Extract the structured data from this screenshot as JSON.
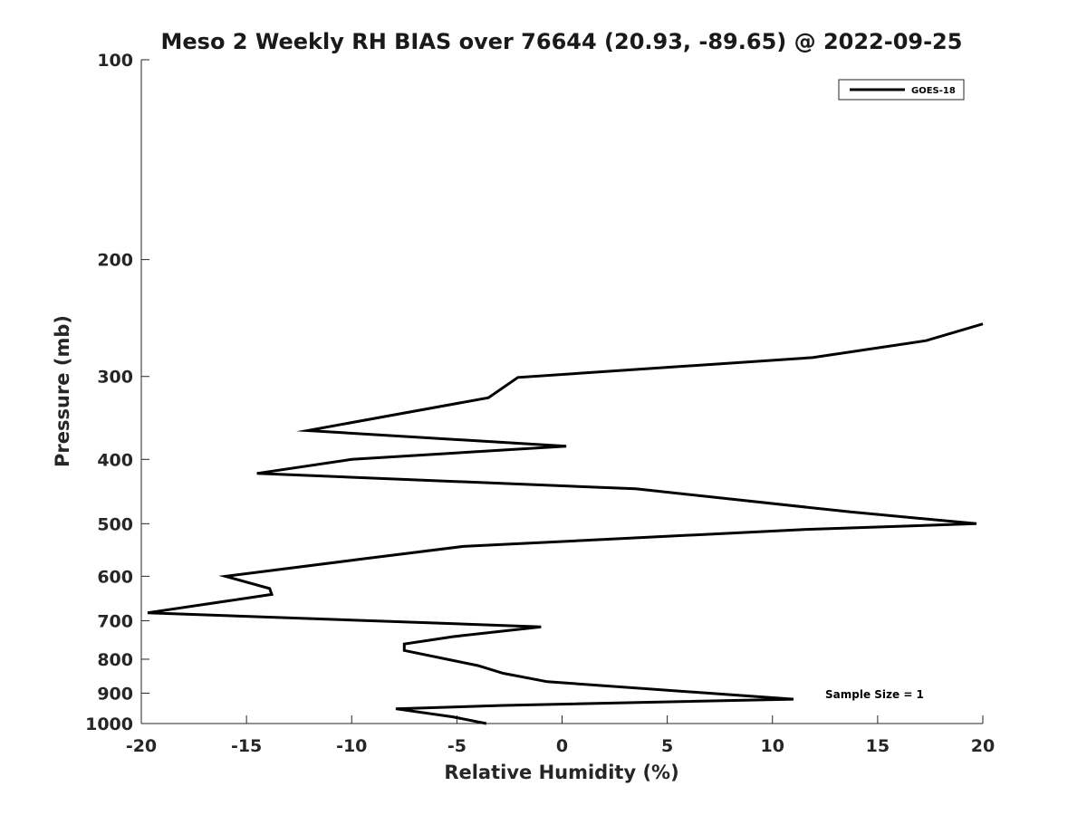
{
  "chart_data": {
    "type": "line",
    "title": "Meso 2 Weekly RH BIAS over 76644 (20.93, -89.65) @ 2022-09-25",
    "xlabel": "Relative Humidity (%)",
    "ylabel": "Pressure (mb)",
    "xlim": [
      -20,
      20
    ],
    "ylim": [
      100,
      1000
    ],
    "yscale": "log",
    "yreversed": true,
    "xticks": [
      -20,
      -15,
      -10,
      -5,
      0,
      5,
      10,
      15,
      20
    ],
    "yticks": [
      100,
      200,
      300,
      400,
      500,
      600,
      700,
      800,
      900,
      1000
    ],
    "grid": false,
    "legend_position": "top-right",
    "annotation": "Sample Size = 1",
    "series": [
      {
        "name": "GOES-18",
        "color": "#000000",
        "points": [
          [
            20.0,
            250
          ],
          [
            17.3,
            265
          ],
          [
            11.9,
            281
          ],
          [
            -2.1,
            301
          ],
          [
            -3.5,
            323
          ],
          [
            -12.1,
            362
          ],
          [
            0.2,
            382
          ],
          [
            -10.0,
            400
          ],
          [
            -14.5,
            420
          ],
          [
            3.5,
            443
          ],
          [
            13.7,
            480
          ],
          [
            19.7,
            500
          ],
          [
            11.6,
            510
          ],
          [
            -4.7,
            541
          ],
          [
            -9.5,
            565
          ],
          [
            -16.0,
            600
          ],
          [
            -13.9,
            626
          ],
          [
            -13.8,
            639
          ],
          [
            -19.7,
            681
          ],
          [
            -1.0,
            715
          ],
          [
            -5.2,
            740
          ],
          [
            -7.5,
            759
          ],
          [
            -7.5,
            776
          ],
          [
            -4.0,
            818
          ],
          [
            -2.8,
            840
          ],
          [
            -0.7,
            865
          ],
          [
            11.0,
            919
          ],
          [
            -2.8,
            939
          ],
          [
            -7.9,
            950
          ],
          [
            -5.2,
            977
          ],
          [
            -3.6,
            1000
          ]
        ]
      }
    ]
  }
}
